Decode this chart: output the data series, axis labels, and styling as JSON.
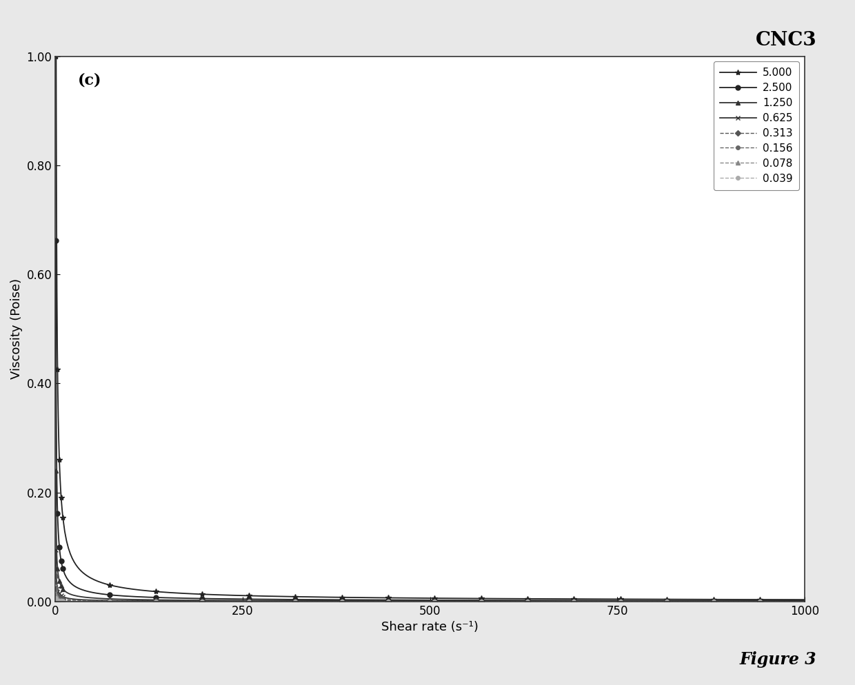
{
  "title": "CNC3",
  "xlabel": "Shear rate (s⁻¹)",
  "ylabel": "Viscosity (Poise)",
  "panel_label": "(c)",
  "figure_label": "Figure 3",
  "xlim": [
    0,
    1000
  ],
  "ylim": [
    0.0,
    1.0
  ],
  "xticks": [
    0,
    250,
    500,
    750,
    1000
  ],
  "yticks": [
    0.0,
    0.2,
    0.4,
    0.6,
    0.8,
    1.0
  ],
  "series": [
    {
      "label": "5.000",
      "K": 1.02,
      "n": 0.18,
      "color": "#222222",
      "linestyle": "-",
      "marker": "*",
      "markersize": 6,
      "markevery": 25,
      "lw": 1.3
    },
    {
      "label": "2.500",
      "K": 0.38,
      "n": 0.2,
      "color": "#222222",
      "linestyle": "-",
      "marker": "o",
      "markersize": 5,
      "markevery": 25,
      "lw": 1.3
    },
    {
      "label": "1.250",
      "K": 0.14,
      "n": 0.22,
      "color": "#333333",
      "linestyle": "-",
      "marker": "^",
      "markersize": 5,
      "markevery": 25,
      "lw": 1.3
    },
    {
      "label": "0.625",
      "K": 0.055,
      "n": 0.22,
      "color": "#333333",
      "linestyle": "-",
      "marker": "x",
      "markersize": 5,
      "markevery": 25,
      "lw": 1.3
    },
    {
      "label": "0.313",
      "K": 0.028,
      "n": 0.25,
      "color": "#555555",
      "linestyle": "--",
      "marker": "D",
      "markersize": 4,
      "markevery": 25,
      "lw": 1.0
    },
    {
      "label": "0.156",
      "K": 0.014,
      "n": 0.25,
      "color": "#666666",
      "linestyle": "--",
      "marker": "o",
      "markersize": 4,
      "markevery": 25,
      "lw": 1.0
    },
    {
      "label": "0.078",
      "K": 0.008,
      "n": 0.28,
      "color": "#888888",
      "linestyle": "--",
      "marker": "^",
      "markersize": 4,
      "markevery": 25,
      "lw": 1.0
    },
    {
      "label": "0.039",
      "K": 0.004,
      "n": 0.3,
      "color": "#aaaaaa",
      "linestyle": "--",
      "marker": "o",
      "markersize": 4,
      "markevery": 25,
      "lw": 1.0
    }
  ],
  "background_color": "#ffffff",
  "border_color": "#333333",
  "legend_border": "#888888",
  "fig_bg": "#e8e8e8"
}
